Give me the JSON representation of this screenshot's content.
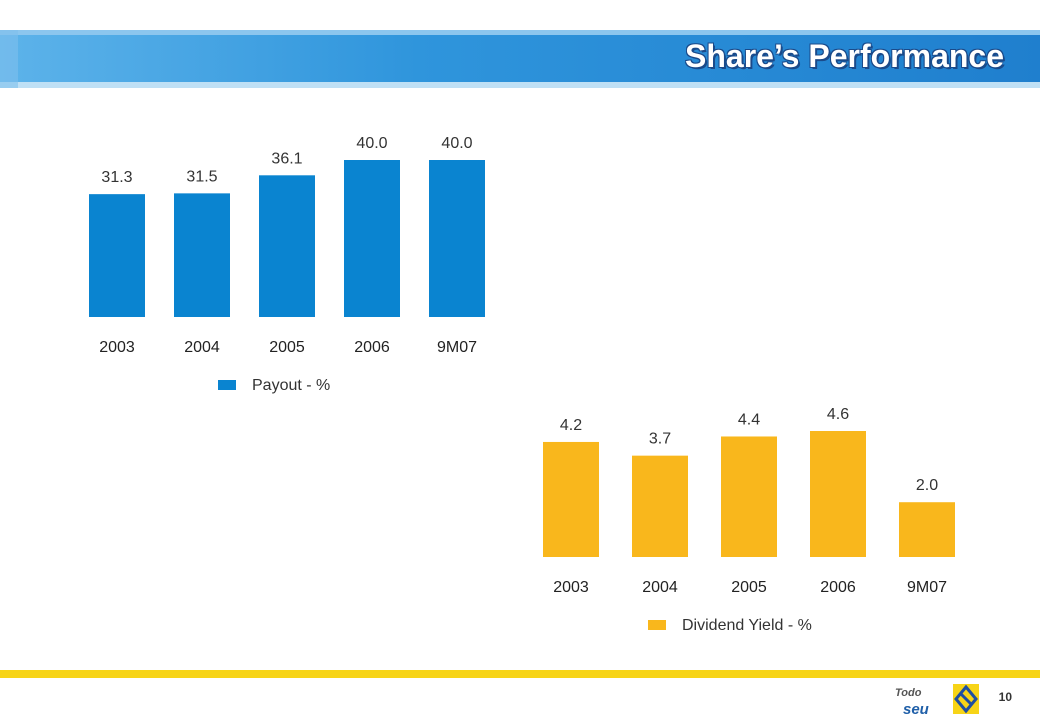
{
  "slide": {
    "title": "Share’s Performance",
    "page_number": "10",
    "logo_text_1": "Todo",
    "logo_text_2": "seu"
  },
  "colors": {
    "title_bar": "#2c8fd6",
    "title_bar_light": "#a8d2f0",
    "payout_bar": "#0a84d0",
    "yield_bar": "#f9b71c",
    "footer_line": "#f7d417"
  },
  "chart_data": [
    {
      "type": "bar",
      "categories": [
        "2003",
        "2004",
        "2005",
        "2006",
        "9M07"
      ],
      "values": [
        31.3,
        31.5,
        36.1,
        40.0,
        40.0
      ],
      "labels": [
        "31.3",
        "31.5",
        "36.1",
        "40.0",
        "40.0"
      ],
      "legend": "Payout - %",
      "color": "#0a84d0",
      "ylim": [
        0,
        40
      ]
    },
    {
      "type": "bar",
      "categories": [
        "2003",
        "2004",
        "2005",
        "2006",
        "9M07"
      ],
      "values": [
        4.2,
        3.7,
        4.4,
        4.6,
        2.0
      ],
      "labels": [
        "4.2",
        "3.7",
        "4.4",
        "4.6",
        "2.0"
      ],
      "legend": "Dividend Yield - %",
      "color": "#f9b71c",
      "ylim": [
        0,
        4.6
      ]
    }
  ]
}
